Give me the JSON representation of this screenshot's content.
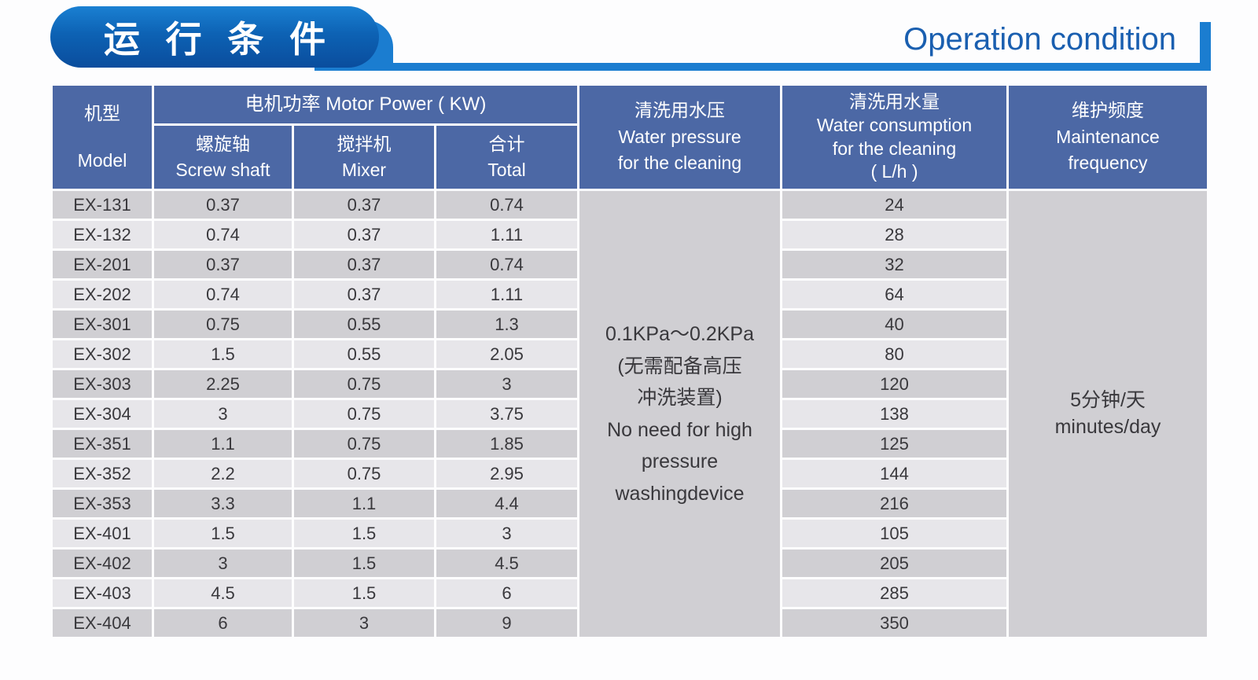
{
  "header": {
    "title_cn": "运 行 条 件",
    "title_en": "Operation condition",
    "accent_dark_blue": "#0a4d9d",
    "accent_light_blue": "#1b7dd0",
    "title_en_color": "#1a5fb0"
  },
  "table": {
    "header_bg": "#4c68a5",
    "row_dark_bg": "#d0cfd3",
    "row_light_bg": "#e7e6ea",
    "pressure_cell_bg": "#d6d5d9",
    "columns": {
      "model": "机型\nModel",
      "motor_power": "电机功率  Motor Power ( KW)",
      "screw_shaft": "螺旋轴\nScrew shaft",
      "mixer": "搅拌机\nMixer",
      "total": "合计\nTotal",
      "water_pressure": "清洗用水压\nWater pressure\nfor the cleaning",
      "water_consumption": "清洗用水量\nWater consumption\nfor the cleaning\n( L/h )",
      "maintenance": "维护频度\nMaintenance\nfrequency"
    },
    "water_pressure_value": "0.1KPa～0.2KPa\n(无需配备高压\n冲洗装置)\nNo need for high\npressure\nwashingdevice",
    "maintenance_value": "5分钟/天\nminutes/day",
    "rows": [
      {
        "model": "EX-131",
        "screw": "0.37",
        "mixer": "0.37",
        "total": "0.74",
        "water": "24"
      },
      {
        "model": "EX-132",
        "screw": "0.74",
        "mixer": "0.37",
        "total": "1.11",
        "water": "28"
      },
      {
        "model": "EX-201",
        "screw": "0.37",
        "mixer": "0.37",
        "total": "0.74",
        "water": "32"
      },
      {
        "model": "EX-202",
        "screw": "0.74",
        "mixer": "0.37",
        "total": "1.11",
        "water": "64"
      },
      {
        "model": "EX-301",
        "screw": "0.75",
        "mixer": "0.55",
        "total": "1.3",
        "water": "40"
      },
      {
        "model": "EX-302",
        "screw": "1.5",
        "mixer": "0.55",
        "total": "2.05",
        "water": "80"
      },
      {
        "model": "EX-303",
        "screw": "2.25",
        "mixer": "0.75",
        "total": "3",
        "water": "120"
      },
      {
        "model": "EX-304",
        "screw": "3",
        "mixer": "0.75",
        "total": "3.75",
        "water": "138"
      },
      {
        "model": "EX-351",
        "screw": "1.1",
        "mixer": "0.75",
        "total": "1.85",
        "water": "125"
      },
      {
        "model": "EX-352",
        "screw": "2.2",
        "mixer": "0.75",
        "total": "2.95",
        "water": "144"
      },
      {
        "model": "EX-353",
        "screw": "3.3",
        "mixer": "1.1",
        "total": "4.4",
        "water": "216"
      },
      {
        "model": "EX-401",
        "screw": "1.5",
        "mixer": "1.5",
        "total": "3",
        "water": "105"
      },
      {
        "model": "EX-402",
        "screw": "3",
        "mixer": "1.5",
        "total": "4.5",
        "water": "205"
      },
      {
        "model": "EX-403",
        "screw": "4.5",
        "mixer": "1.5",
        "total": "6",
        "water": "285"
      },
      {
        "model": "EX-404",
        "screw": "6",
        "mixer": "3",
        "total": "9",
        "water": "350"
      }
    ]
  }
}
